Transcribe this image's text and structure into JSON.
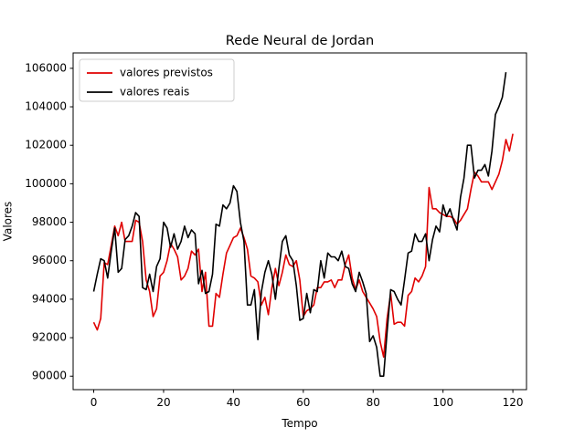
{
  "chart_data": {
    "type": "line",
    "title": "Rede Neural de Jordan",
    "xlabel": "Tempo",
    "ylabel": "Valores",
    "xlim": [
      -5.9,
      123.9
    ],
    "ylim": [
      89300,
      106800
    ],
    "xticks": [
      0,
      20,
      40,
      60,
      80,
      100,
      120
    ],
    "yticks": [
      90000,
      92000,
      94000,
      96000,
      98000,
      100000,
      102000,
      104000,
      106000
    ],
    "grid": false,
    "legend_position": "top-left",
    "series": [
      {
        "name": "valores previstos",
        "color": "#e00000",
        "values": [
          92800,
          92400,
          93000,
          95900,
          95800,
          96800,
          97800,
          97300,
          98000,
          97000,
          97000,
          97000,
          98100,
          98000,
          97000,
          95000,
          94400,
          93100,
          93500,
          95200,
          95400,
          96000,
          96900,
          96600,
          96200,
          95000,
          95200,
          95600,
          96500,
          96300,
          96600,
          94400,
          95400,
          92600,
          92600,
          94300,
          94100,
          95300,
          96400,
          96800,
          97200,
          97300,
          97700,
          97200,
          96600,
          95200,
          95100,
          94900,
          93700,
          94100,
          93200,
          94600,
          95600,
          94700,
          95400,
          96300,
          95800,
          95700,
          96000,
          95000,
          93100,
          93400,
          93500,
          93700,
          94600,
          94600,
          94900,
          94900,
          95000,
          94600,
          95000,
          95000,
          95800,
          96300,
          95100,
          94500,
          95000,
          94400,
          94100,
          93800,
          93500,
          93100,
          91800,
          91000,
          93000,
          94300,
          92700,
          92800,
          92800,
          92600,
          94200,
          94400,
          95100,
          94900,
          95200,
          95700,
          99800,
          98700,
          98700,
          98500,
          98400,
          98300,
          98300,
          98200,
          97900,
          98100,
          98400,
          98700,
          99700,
          100600,
          100400,
          100100,
          100100,
          100100,
          99700,
          100100,
          100500,
          101200,
          102300,
          101700,
          102600
        ]
      },
      {
        "name": "valores reais",
        "color": "#000000",
        "values": [
          94400,
          95300,
          96100,
          96000,
          95100,
          96500,
          97700,
          95400,
          95600,
          97100,
          97300,
          97800,
          98500,
          98300,
          94600,
          94500,
          95300,
          94400,
          95700,
          96100,
          98000,
          97700,
          96700,
          97400,
          96600,
          97000,
          97800,
          97200,
          97600,
          97400,
          94800,
          95500,
          94300,
          94400,
          95300,
          97900,
          97800,
          98900,
          98700,
          99000,
          99900,
          99600,
          98000,
          97000,
          93700,
          93700,
          94500,
          91900,
          94400,
          95400,
          96000,
          95300,
          94000,
          95600,
          97000,
          97300,
          96300,
          96000,
          94700,
          92900,
          93000,
          94300,
          93300,
          94500,
          94400,
          96000,
          95100,
          96400,
          96200,
          96200,
          96000,
          96500,
          95700,
          95600,
          94800,
          94400,
          95400,
          94900,
          94300,
          91800,
          92100,
          91500,
          90000,
          90000,
          92300,
          94500,
          94400,
          94000,
          93700,
          95000,
          96400,
          96500,
          97400,
          97000,
          97000,
          97400,
          96000,
          97100,
          97800,
          97500,
          98900,
          98300,
          98700,
          98100,
          97600,
          99300,
          100300,
          102000,
          102000,
          100300,
          100700,
          100700,
          101000,
          100400,
          101700,
          103600,
          104000,
          104500,
          105800
        ]
      }
    ]
  }
}
